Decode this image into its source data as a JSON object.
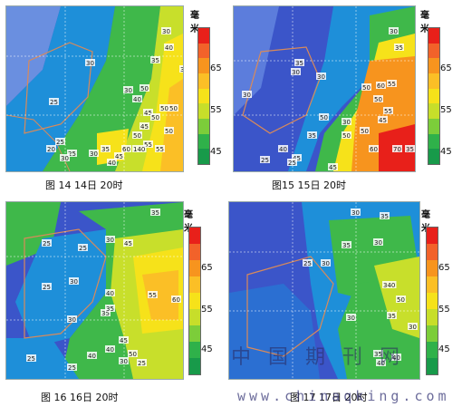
{
  "colorbar": {
    "unit": "毫米",
    "ticks": [
      "65",
      "55",
      "45"
    ],
    "colors": [
      "#e8201a",
      "#f2622a",
      "#f7941e",
      "#fbbf26",
      "#f6e21a",
      "#c7de2a",
      "#7ccd3a",
      "#2fb14a",
      "#189a4a"
    ]
  },
  "panels": [
    {
      "id": "p1",
      "caption": "图 14  14日 20时",
      "labels": [
        "30",
        "40",
        "25",
        "30",
        "35",
        "35",
        "30",
        "40",
        "50",
        "45",
        "50",
        "50",
        "50",
        "45",
        "50",
        "55",
        "60",
        "35",
        "40",
        "45",
        "25",
        "20",
        "25",
        "30",
        "55",
        "140",
        "50",
        "30"
      ]
    },
    {
      "id": "p2",
      "caption": "图15  15日 20时",
      "labels": [
        "30",
        "35",
        "30",
        "35",
        "30",
        "50",
        "60",
        "55",
        "50",
        "55",
        "45",
        "30",
        "50",
        "70",
        "35",
        "35",
        "50",
        "60",
        "40",
        "45",
        "25",
        "25",
        "50",
        "45",
        "30"
      ]
    },
    {
      "id": "p3",
      "caption": "图 16  16日 20时",
      "labels": [
        "35",
        "25",
        "25",
        "30",
        "45",
        "25",
        "30",
        "40",
        "55",
        "60",
        "35",
        "35",
        "30",
        "25",
        "25",
        "40",
        "40",
        "30",
        "45",
        "25",
        "50"
      ]
    },
    {
      "id": "p4",
      "caption": "图 17  17日 20时",
      "labels": [
        "30",
        "35",
        "30",
        "35",
        "25",
        "30",
        "340",
        "30",
        "35",
        "50",
        "40",
        "35",
        "40",
        "30"
      ]
    }
  ],
  "watermark": {
    "text": "中 国 期 刊 网",
    "url": "www.chinaqking.com"
  }
}
